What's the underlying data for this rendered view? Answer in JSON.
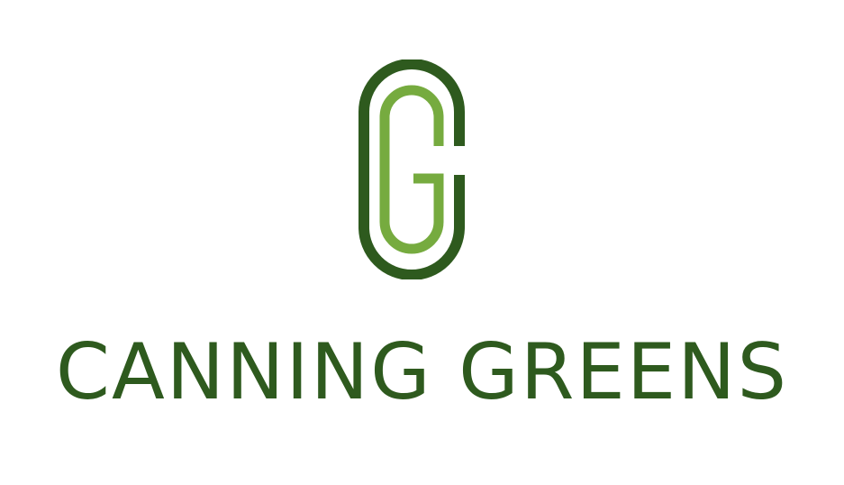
{
  "brand": {
    "name": "CANNING GREENS",
    "monogram": "G",
    "colors": {
      "dark_green": "#2e5a1e",
      "light_green": "#76ab3f",
      "background": "#ffffff"
    },
    "icon": "cg-monogram-icon"
  }
}
